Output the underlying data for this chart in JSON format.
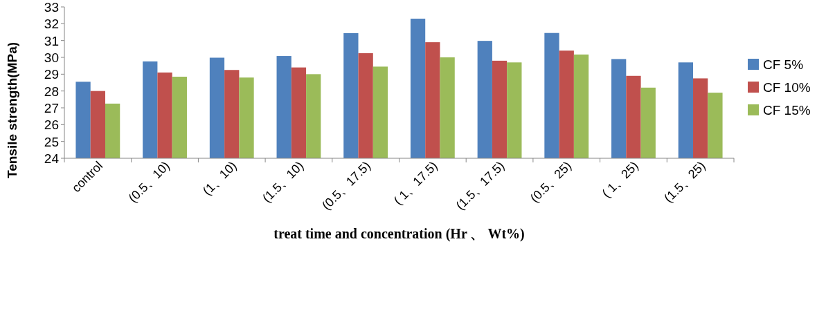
{
  "chart_data": {
    "type": "bar",
    "xlabel": "treat time and concentration (Hr 、 Wt%)",
    "ylabel": "Tensile strength(MPa)",
    "categories": [
      "control",
      "(0.5、10)",
      "(1、10)",
      "(1.5、10)",
      "(0.5、17.5)",
      "( 1、17.5)",
      "(1.5、17.5)",
      "(0.5、25)",
      "( 1、25)",
      "(1.5、25)"
    ],
    "series": [
      {
        "name": "CF 5%",
        "color": "#4f81bd",
        "values": [
          28.55,
          29.76,
          29.98,
          30.08,
          31.44,
          32.3,
          30.98,
          31.45,
          29.9,
          29.7
        ]
      },
      {
        "name": "CF 10%",
        "color": "#c0504d",
        "values": [
          28.0,
          29.1,
          29.25,
          29.4,
          30.25,
          30.9,
          29.8,
          30.4,
          28.9,
          28.75
        ]
      },
      {
        "name": "CF 15%",
        "color": "#9bbb59",
        "values": [
          27.25,
          28.85,
          28.8,
          29.0,
          29.45,
          30.0,
          29.7,
          30.17,
          28.2,
          27.9
        ]
      }
    ],
    "ylim": [
      24,
      33
    ],
    "yticks": [
      24,
      25,
      26,
      27,
      28,
      29,
      30,
      31,
      32,
      33
    ],
    "grid": false,
    "legend": "right"
  }
}
